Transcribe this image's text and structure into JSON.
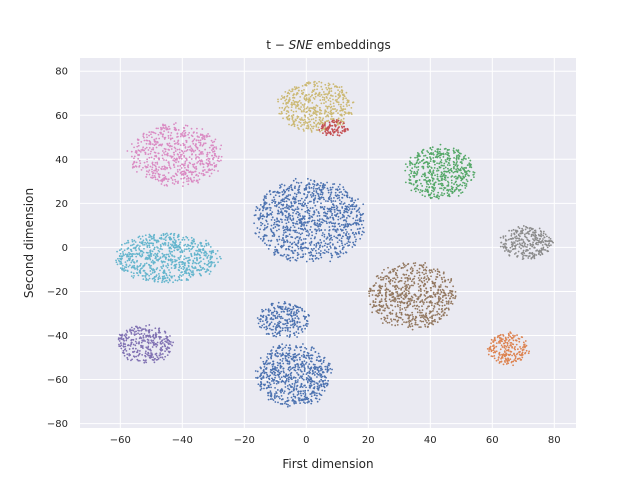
{
  "chart_data": {
    "type": "scatter",
    "title_prefix": "t − ",
    "title_math": "SNE",
    "title_suffix": " embeddings",
    "xlabel": "First dimension",
    "ylabel": "Second dimension",
    "xlim": [
      -73,
      87
    ],
    "ylim": [
      -82,
      86
    ],
    "xticks": [
      -60,
      -40,
      -20,
      0,
      20,
      40,
      60,
      80
    ],
    "yticks": [
      -80,
      -60,
      -40,
      -20,
      0,
      20,
      40,
      60,
      80
    ],
    "grid": true,
    "background": "#eaeaf2",
    "clusters": [
      {
        "cx": -42,
        "cy": 42,
        "rx": 16,
        "ry": 15,
        "color": "#da8bc3",
        "n": 650
      },
      {
        "cx": 3,
        "cy": 64,
        "rx": 13,
        "ry": 12,
        "color": "#ccb974",
        "n": 500
      },
      {
        "cx": 9,
        "cy": 54,
        "rx": 5,
        "ry": 4,
        "color": "#c44e52",
        "n": 90
      },
      {
        "cx": 43,
        "cy": 34,
        "rx": 12,
        "ry": 13,
        "color": "#55a868",
        "n": 520
      },
      {
        "cx": 1,
        "cy": 12,
        "rx": 19,
        "ry": 20,
        "color": "#4c72b0",
        "n": 1100
      },
      {
        "cx": 71,
        "cy": 2,
        "rx": 9,
        "ry": 8,
        "color": "#8c8c8c",
        "n": 300
      },
      {
        "cx": -45,
        "cy": -5,
        "rx": 18,
        "ry": 12,
        "color": "#64b5cd",
        "n": 750
      },
      {
        "cx": 34,
        "cy": -22,
        "rx": 15,
        "ry": 16,
        "color": "#937860",
        "n": 720
      },
      {
        "cx": -52,
        "cy": -44,
        "rx": 10,
        "ry": 9,
        "color": "#8172b3",
        "n": 330
      },
      {
        "cx": 65,
        "cy": -46,
        "rx": 7,
        "ry": 8,
        "color": "#dd8452",
        "n": 230
      },
      {
        "cx": -7,
        "cy": -33,
        "rx": 9,
        "ry": 9,
        "color": "#4c72b0",
        "n": 260
      },
      {
        "cx": -4,
        "cy": -58,
        "rx": 13,
        "ry": 15,
        "color": "#4c72b0",
        "n": 700
      }
    ]
  }
}
